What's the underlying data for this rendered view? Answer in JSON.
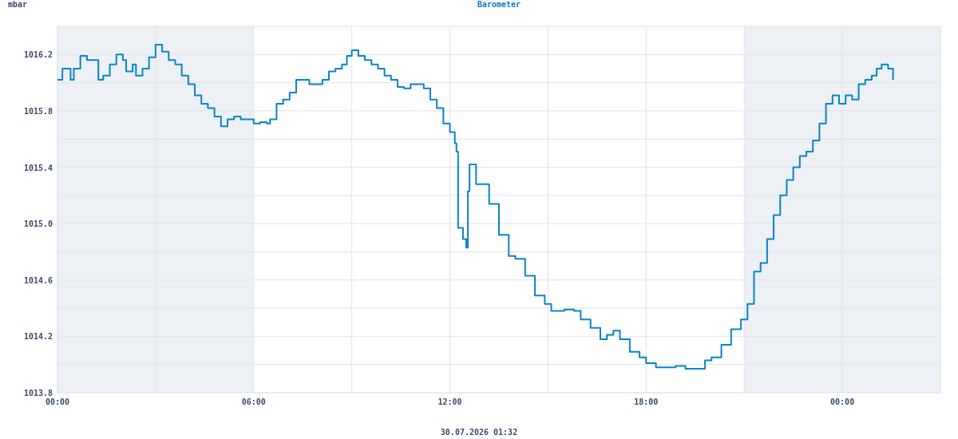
{
  "chart_data": {
    "type": "step",
    "title": "Barometer",
    "ylabel": "mbar",
    "annotations": [
      "30.07.2026 01:32"
    ],
    "x": [
      0,
      0.15,
      0.4,
      0.5,
      0.7,
      0.9,
      1.1,
      1.25,
      1.4,
      1.6,
      1.8,
      2.0,
      2.1,
      2.3,
      2.4,
      2.6,
      2.8,
      3.0,
      3.2,
      3.4,
      3.6,
      3.8,
      4.0,
      4.2,
      4.4,
      4.6,
      4.8,
      5.0,
      5.2,
      5.4,
      5.6,
      5.8,
      6.0,
      6.2,
      6.4,
      6.5,
      6.7,
      6.9,
      7.1,
      7.3,
      7.5,
      7.7,
      7.9,
      8.1,
      8.3,
      8.5,
      8.7,
      8.85,
      9.0,
      9.2,
      9.4,
      9.6,
      9.8,
      10.0,
      10.2,
      10.4,
      10.6,
      10.8,
      11.0,
      11.2,
      11.4,
      11.6,
      11.8,
      12.0,
      12.15,
      12.2,
      12.25,
      12.4,
      12.5,
      12.55,
      12.6,
      12.8,
      13.0,
      13.2,
      13.5,
      13.8,
      14.0,
      14.3,
      14.6,
      14.9,
      15.1,
      15.5,
      15.8,
      16.0,
      16.3,
      16.6,
      16.8,
      17.0,
      17.2,
      17.5,
      17.8,
      18.0,
      18.3,
      18.6,
      18.9,
      19.2,
      19.5,
      19.8,
      20.0,
      20.3,
      20.6,
      20.9,
      21.1,
      21.3,
      21.5,
      21.7,
      21.9,
      22.1,
      22.3,
      22.5,
      22.7,
      22.9,
      23.1,
      23.3,
      23.5,
      23.7,
      23.9,
      24.1,
      24.3,
      24.5,
      24.7,
      24.9,
      25.05,
      25.2,
      25.4,
      25.55
    ],
    "series": [
      {
        "color": "#0a84c6",
        "values": [
          1016.02,
          1016.1,
          1016.02,
          1016.1,
          1016.19,
          1016.16,
          1016.16,
          1016.02,
          1016.05,
          1016.13,
          1016.2,
          1016.16,
          1016.08,
          1016.13,
          1016.05,
          1016.1,
          1016.18,
          1016.27,
          1016.22,
          1016.16,
          1016.13,
          1016.05,
          1015.99,
          1015.91,
          1015.85,
          1015.82,
          1015.76,
          1015.69,
          1015.74,
          1015.76,
          1015.74,
          1015.74,
          1015.71,
          1015.72,
          1015.71,
          1015.74,
          1015.85,
          1015.88,
          1015.93,
          1016.02,
          1016.02,
          1015.99,
          1015.99,
          1016.02,
          1016.08,
          1016.1,
          1016.13,
          1016.19,
          1016.23,
          1016.19,
          1016.16,
          1016.13,
          1016.1,
          1016.05,
          1016.02,
          1015.97,
          1015.96,
          1015.99,
          1015.99,
          1015.96,
          1015.88,
          1015.82,
          1015.71,
          1015.65,
          1015.57,
          1015.51,
          1014.97,
          1014.89,
          1014.83,
          1015.23,
          1015.42,
          1015.28,
          1015.28,
          1015.14,
          1014.92,
          1014.77,
          1014.75,
          1014.63,
          1014.49,
          1014.43,
          1014.38,
          1014.39,
          1014.38,
          1014.32,
          1014.26,
          1014.18,
          1014.21,
          1014.24,
          1014.18,
          1014.09,
          1014.05,
          1014.01,
          1013.98,
          1013.98,
          1013.99,
          1013.97,
          1013.97,
          1014.03,
          1014.05,
          1014.14,
          1014.25,
          1014.32,
          1014.43,
          1014.66,
          1014.72,
          1014.89,
          1015.06,
          1015.2,
          1015.31,
          1015.4,
          1015.48,
          1015.51,
          1015.59,
          1015.71,
          1015.85,
          1015.91,
          1015.85,
          1015.91,
          1015.88,
          1015.99,
          1016.02,
          1016.05,
          1016.1,
          1016.13,
          1016.1,
          1016.02
        ]
      }
    ],
    "xlim": [
      0,
      27
    ],
    "xticks": [
      {
        "value": 0,
        "label": "00:00"
      },
      {
        "value": 3,
        "label": null
      },
      {
        "value": 6,
        "label": "06:00"
      },
      {
        "value": 9,
        "label": null
      },
      {
        "value": 12,
        "label": "12:00"
      },
      {
        "value": 15,
        "label": null
      },
      {
        "value": 18,
        "label": "18:00"
      },
      {
        "value": 21,
        "label": null
      },
      {
        "value": 24,
        "label": "00:00"
      }
    ],
    "ylim": [
      1013.8,
      1016.4
    ],
    "yticks": [
      1013.8,
      {
        "value": 1014.0,
        "label": null
      },
      1014.2,
      {
        "value": 1014.4,
        "label": null
      },
      1014.6,
      {
        "value": 1014.8,
        "label": null
      },
      {
        "value": 1015.0,
        "label": "1015.0"
      },
      {
        "value": 1015.2,
        "label": null
      },
      1015.4,
      {
        "value": 1015.6,
        "label": null
      },
      1015.8,
      {
        "value": 1016.0,
        "label": null
      },
      1016.2
    ],
    "bands": [
      {
        "axis": "x",
        "from": 0,
        "to": 6,
        "color": "#edf0f5"
      },
      {
        "axis": "x",
        "from": 21,
        "to": 27,
        "color": "#edf0f5"
      }
    ],
    "grid": true
  }
}
